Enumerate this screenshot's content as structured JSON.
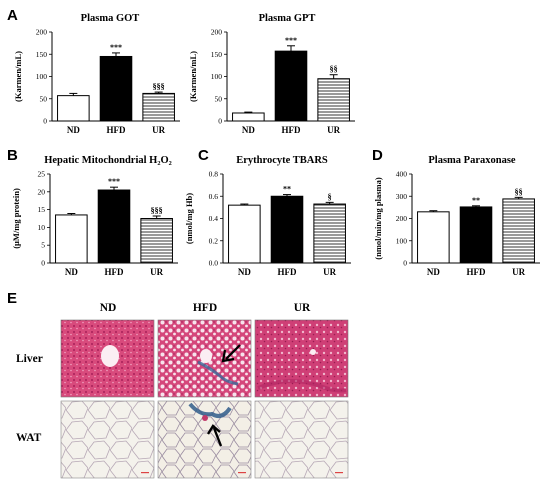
{
  "panels": {
    "a": "A",
    "b": "B",
    "c": "C",
    "d": "D",
    "e": "E"
  },
  "chart_data": [
    {
      "type": "bar",
      "panel": "A",
      "title": "Plasma GOT",
      "ylabel": "(Karmen/mL)",
      "categories": [
        "ND",
        "HFD",
        "UR"
      ],
      "values": [
        57,
        145,
        62
      ],
      "errors": [
        5,
        8,
        3
      ],
      "significance": [
        "",
        "***",
        "§§§"
      ],
      "fills": [
        "white",
        "black",
        "hatched"
      ],
      "ylim": [
        0,
        200
      ],
      "yticks": [
        0,
        50,
        100,
        150,
        200
      ]
    },
    {
      "type": "bar",
      "panel": "A",
      "title": "Plasma GPT",
      "ylabel": "(Karmen/mL)",
      "categories": [
        "ND",
        "HFD",
        "UR"
      ],
      "values": [
        18,
        157,
        95
      ],
      "errors": [
        2,
        12,
        9
      ],
      "significance": [
        "",
        "***",
        "§§"
      ],
      "fills": [
        "white",
        "black",
        "hatched"
      ],
      "ylim": [
        0,
        200
      ],
      "yticks": [
        0,
        50,
        100,
        150,
        200
      ]
    },
    {
      "type": "bar",
      "panel": "B",
      "title": "Hepatic Mitochondrial H₂O₂",
      "ylabel": "(μM/mg protein)",
      "categories": [
        "ND",
        "HFD",
        "UR"
      ],
      "values": [
        13.5,
        20.5,
        12.5
      ],
      "errors": [
        0.4,
        0.8,
        0.7
      ],
      "significance": [
        "",
        "***",
        "§§§"
      ],
      "fills": [
        "white",
        "black",
        "hatched"
      ],
      "ylim": [
        0,
        25
      ],
      "yticks": [
        0,
        5,
        10,
        15,
        20,
        25
      ]
    },
    {
      "type": "bar",
      "panel": "C",
      "title": "Erythrocyte TBARS",
      "ylabel": "(nmol/mg Hb)",
      "categories": [
        "ND",
        "HFD",
        "UR"
      ],
      "values": [
        0.52,
        0.6,
        0.53
      ],
      "errors": [
        0.01,
        0.015,
        0.015
      ],
      "significance": [
        "",
        "**",
        "§"
      ],
      "fills": [
        "white",
        "black",
        "hatched"
      ],
      "ylim": [
        0,
        0.8
      ],
      "yticks": [
        0.0,
        0.2,
        0.4,
        0.6,
        0.8
      ],
      "ytick_labels": [
        "0.0",
        "0.2",
        "0.4",
        "0.6",
        "0.8"
      ]
    },
    {
      "type": "bar",
      "panel": "D",
      "title": "Plasma Paraxonase",
      "ylabel": "(nmol/min/mg plasma)",
      "categories": [
        "ND",
        "HFD",
        "UR"
      ],
      "values": [
        230,
        252,
        288
      ],
      "errors": [
        5,
        5,
        7
      ],
      "significance": [
        "",
        "**",
        "§§"
      ],
      "fills": [
        "white",
        "black",
        "hatched"
      ],
      "ylim": [
        0,
        400
      ],
      "yticks": [
        0,
        100,
        200,
        300,
        400
      ]
    }
  ],
  "histology": {
    "columns": [
      "ND",
      "HFD",
      "UR"
    ],
    "rows": [
      "Liver",
      "WAT"
    ],
    "colors": {
      "liver_bg": "#d63a74",
      "liver_light": "#f2b8cc",
      "fibrosis": "#3a6a9a",
      "wat_bg": "#f3f1ea",
      "wat_line": "#b9a9b8"
    }
  }
}
